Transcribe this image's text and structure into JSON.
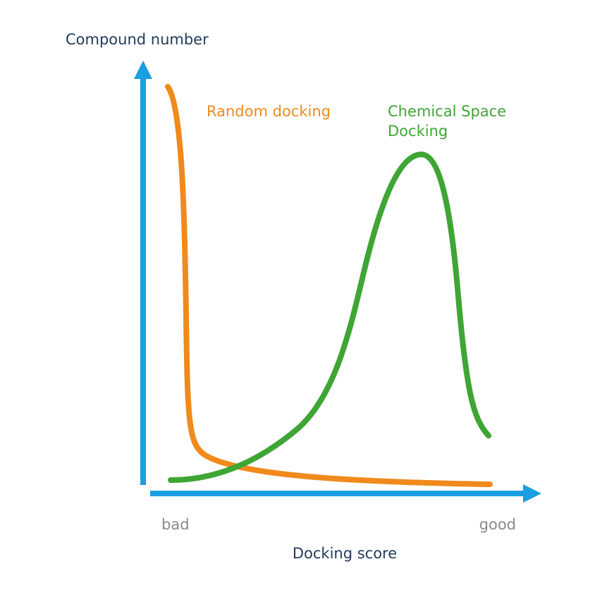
{
  "y_axis_label": "Compound number",
  "x_axis_label": "Docking score",
  "x_axis_low": "bad",
  "x_axis_high": "good",
  "curves": [
    {
      "label": [
        "Random docking"
      ]
    },
    {
      "label": [
        "Chemical Space",
        "Docking"
      ]
    }
  ]
}
